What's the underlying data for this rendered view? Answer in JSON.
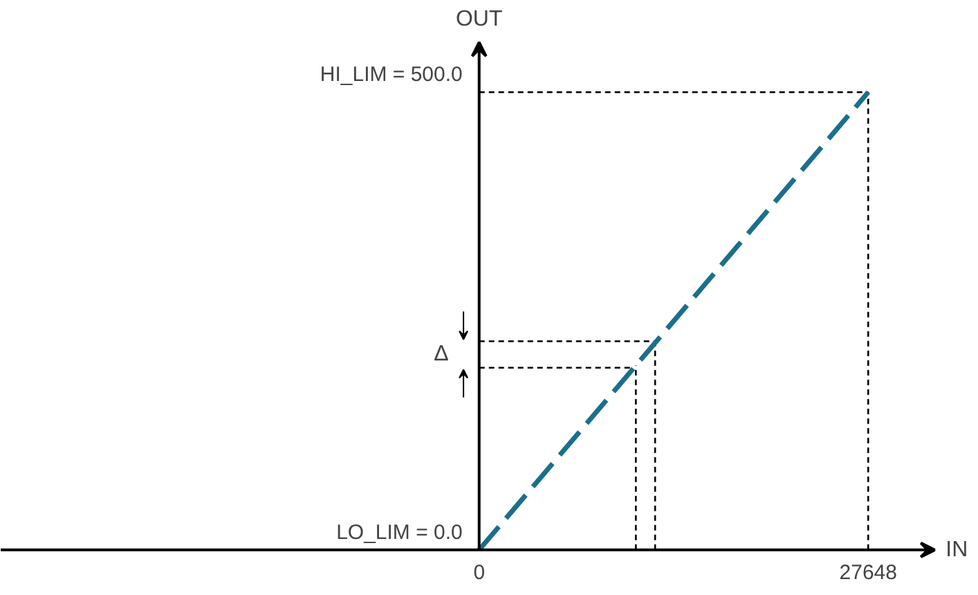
{
  "chart_data": {
    "type": "line",
    "xlabel": "IN",
    "ylabel": "OUT",
    "x": [
      0,
      27648
    ],
    "series": [
      {
        "color": "#1b6f8c",
        "values": [
          0,
          500
        ]
      }
    ],
    "line_style": "dashed",
    "marker": "none",
    "grid": false,
    "xlim": [
      -34000,
      35500
    ],
    "ylim": [
      -50,
      600
    ],
    "xticks": [
      0,
      27648
    ],
    "yticks": [
      {
        "value": 0,
        "label": "LO_LIM = 0.0"
      },
      {
        "value": 500,
        "label": "HI_LIM = 500.0"
      }
    ],
    "ref_lines": [
      {
        "axis": "y",
        "value": 500,
        "color": "#000000",
        "line_style": "dashed"
      },
      {
        "axis": "x",
        "value": 27648,
        "color": "#000000",
        "line_style": "dashed"
      },
      {
        "axis": "y",
        "value": 228,
        "color": "#000000",
        "line_style": "dashed"
      },
      {
        "axis": "y",
        "value": 199,
        "color": "#000000",
        "line_style": "dashed"
      },
      {
        "axis": "x",
        "value": 12505,
        "color": "#000000",
        "line_style": "dashed"
      },
      {
        "axis": "x",
        "value": 11137,
        "color": "#000000",
        "line_style": "dashed"
      }
    ],
    "annotations": [
      "Δ"
    ]
  }
}
